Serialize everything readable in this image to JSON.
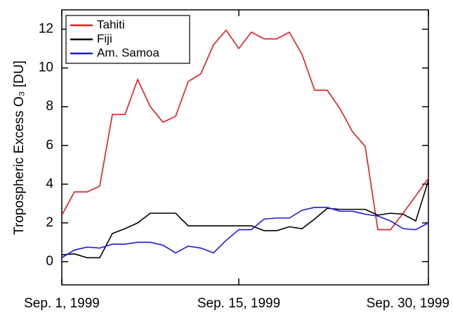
{
  "chart_data": {
    "type": "line",
    "y_label": "Tropospheric Excess O₃ [DU]",
    "x": [
      1,
      2,
      3,
      4,
      5,
      6,
      7,
      8,
      9,
      10,
      11,
      12,
      13,
      14,
      15,
      16,
      17,
      18,
      19,
      20,
      21,
      22,
      23,
      24,
      25,
      26,
      27,
      28,
      29,
      30
    ],
    "series": [
      {
        "name": "Tahiti",
        "color": "#e8191f",
        "values": [
          2.4,
          3.6,
          3.6,
          3.9,
          7.6,
          7.6,
          9.4,
          8.0,
          7.2,
          7.5,
          9.3,
          9.7,
          11.2,
          11.95,
          11.0,
          11.85,
          11.5,
          11.5,
          11.85,
          10.7,
          8.85,
          8.85,
          7.9,
          6.7,
          5.95,
          1.65,
          1.65,
          2.5,
          3.4,
          4.3
        ]
      },
      {
        "name": "Fiji",
        "color": "#000000",
        "values": [
          0.35,
          0.4,
          0.2,
          0.2,
          1.45,
          1.7,
          2.0,
          2.5,
          2.5,
          2.5,
          1.85,
          1.85,
          1.85,
          1.85,
          1.85,
          1.85,
          1.6,
          1.6,
          1.8,
          1.7,
          2.2,
          2.75,
          2.7,
          2.7,
          2.7,
          2.4,
          2.5,
          2.45,
          2.1,
          4.2
        ]
      },
      {
        "name": "Am. Samoa",
        "color": "#1a1ae6",
        "values": [
          0.2,
          0.6,
          0.75,
          0.7,
          0.9,
          0.9,
          1.0,
          1.0,
          0.85,
          0.45,
          0.8,
          0.7,
          0.45,
          1.1,
          1.65,
          1.65,
          2.2,
          2.25,
          2.25,
          2.65,
          2.8,
          2.8,
          2.6,
          2.6,
          2.45,
          2.35,
          2.1,
          1.7,
          1.65,
          2.0
        ]
      }
    ],
    "xlim": [
      1,
      30
    ],
    "xticks": [
      {
        "value": 1,
        "label": "Sep. 1, 1999"
      },
      {
        "value": 15,
        "label": "Sep. 15, 1999"
      },
      {
        "value": 30,
        "label": "Sep. 30, 1999"
      }
    ],
    "ylim": [
      -1.2,
      13
    ],
    "yticks": [
      0,
      2,
      4,
      6,
      8,
      10,
      12
    ],
    "legend": "top-left"
  }
}
